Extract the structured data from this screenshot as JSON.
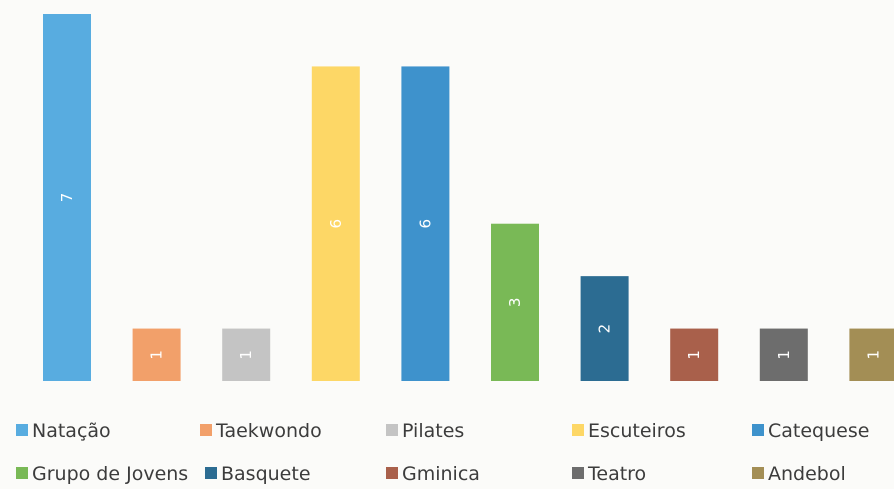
{
  "chart_data": {
    "type": "bar",
    "title": "",
    "xlabel": "",
    "ylabel": "",
    "ylim": [
      0,
      7
    ],
    "grid": false,
    "legend_position": "bottom",
    "data_labels": true,
    "categories": [
      "Natação",
      "Taekwondo",
      "Pilates",
      "Escuteiros",
      "Catequese",
      "Grupo de Jovens",
      "Basquete",
      "Gminica",
      "Teatro",
      "Andebol"
    ],
    "values": [
      7,
      1,
      1,
      6,
      6,
      3,
      2,
      1,
      1,
      1
    ],
    "colors": [
      "#58ace0",
      "#f2a06a",
      "#c4c4c4",
      "#fdd766",
      "#3e92cc",
      "#79b956",
      "#2c6c92",
      "#a9604b",
      "#6d6d6d",
      "#a38e55"
    ]
  }
}
